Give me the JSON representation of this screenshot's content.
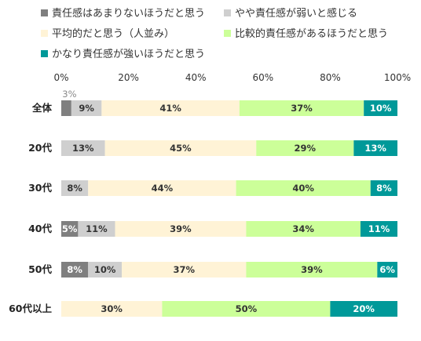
{
  "chart_data": {
    "type": "bar",
    "orientation": "horizontal",
    "stacked": true,
    "percent": true,
    "title": "",
    "xlabel": "",
    "ylabel": "",
    "xlim": [
      0,
      100
    ],
    "x_ticks": [
      "0%",
      "20%",
      "40%",
      "60%",
      "80%",
      "100%"
    ],
    "grid": false,
    "legend_position": "top",
    "categories": [
      "全体",
      "20代",
      "30代",
      "40代",
      "50代",
      "60代以上"
    ],
    "series": [
      {
        "name": "責任感はあまりないほうだと思う",
        "color": "#7f7f7f",
        "text_color": "#ffffff",
        "values": [
          3,
          0,
          0,
          5,
          8,
          0
        ]
      },
      {
        "name": "やや責任感が弱いと感じる",
        "color": "#cfcfcf",
        "text_color": "#333333",
        "values": [
          9,
          13,
          8,
          11,
          10,
          0
        ]
      },
      {
        "name": "平均的だと思う（人並み）",
        "color": "#fff3d6",
        "text_color": "#333333",
        "values": [
          41,
          45,
          44,
          39,
          37,
          30
        ]
      },
      {
        "name": "比較的責任感があるほうだと思う",
        "color": "#ccff99",
        "text_color": "#333333",
        "values": [
          37,
          29,
          40,
          34,
          39,
          50
        ]
      },
      {
        "name": "かなり責任感が強いほうだと思う",
        "color": "#009999",
        "text_color": "#ffffff",
        "values": [
          10,
          13,
          8,
          11,
          6,
          20
        ]
      }
    ],
    "data_labels": [
      [
        "3%",
        "9%",
        "41%",
        "37%",
        "10%"
      ],
      [
        "",
        "13%",
        "45%",
        "29%",
        "13%"
      ],
      [
        "",
        "8%",
        "44%",
        "40%",
        "8%"
      ],
      [
        "5%",
        "11%",
        "39%",
        "34%",
        "11%"
      ],
      [
        "8%",
        "10%",
        "37%",
        "39%",
        "6%"
      ],
      [
        "",
        "",
        "30%",
        "50%",
        "20%"
      ]
    ]
  }
}
